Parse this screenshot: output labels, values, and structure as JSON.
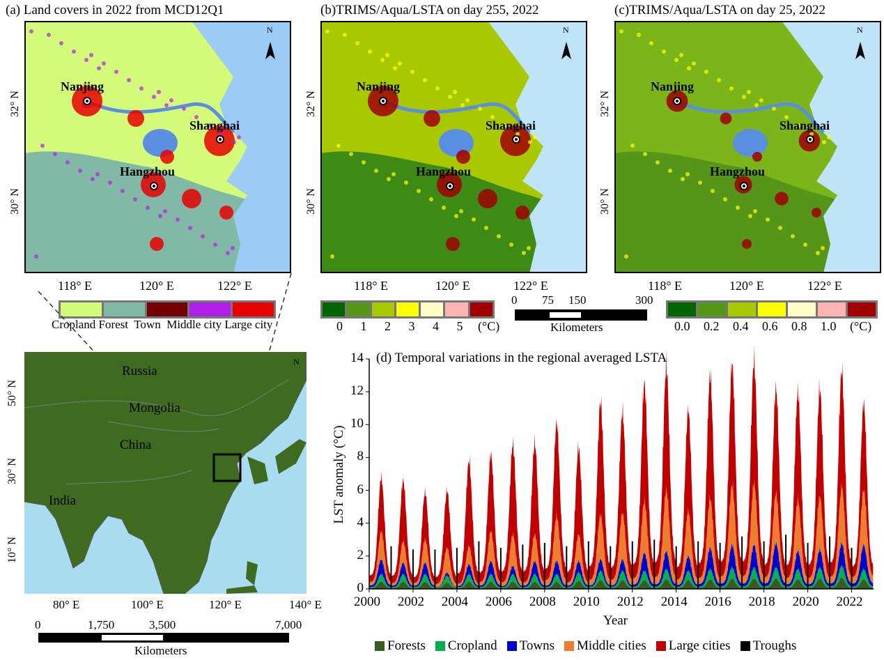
{
  "panels": {
    "a": {
      "title": "(a) Land covers in 2022 from MCD12Q1",
      "legend": [
        "Cropland",
        "Forest",
        "Town",
        "Middle city",
        "Large city"
      ],
      "legend_colors": [
        "#d4fa7a",
        "#82b9a6",
        "#720000",
        "#b020e8",
        "#e80000"
      ]
    },
    "b": {
      "title": "(b)TRIMS/Aqua/LSTA on day 255, 2022",
      "legend_labels": [
        "0",
        "1",
        "2",
        "3",
        "4",
        "5",
        "(°C)"
      ],
      "legend_colors": [
        "#006400",
        "#55961a",
        "#a8c800",
        "#ffff00",
        "#ffffc8",
        "#ffb4b4",
        "#a00000"
      ]
    },
    "c": {
      "title": "(c)TRIMS/Aqua/LSTA on day 25, 2022",
      "legend_labels": [
        "0.0",
        "0.2",
        "0.4",
        "0.6",
        "0.8",
        "1.0",
        "(°C)"
      ],
      "legend_colors": [
        "#006400",
        "#55961a",
        "#a8c800",
        "#ffff00",
        "#ffffc8",
        "#ffb4b4",
        "#a00000"
      ]
    }
  },
  "map_labels": {
    "lat": [
      "32° N",
      "30° N"
    ],
    "lon": [
      "118° E",
      "120° E",
      "122° E"
    ],
    "cities": [
      "Nanjing",
      "Shanghai",
      "Hangzhou"
    ],
    "north": "N"
  },
  "scalebar_regional": {
    "ticks": [
      "0",
      "75",
      "150",
      "300"
    ],
    "unit": "Kilometers"
  },
  "location_map": {
    "countries": [
      "Russia",
      "Mongolia",
      "China",
      "India"
    ],
    "lat": [
      "50° N",
      "30° N",
      "10° N"
    ],
    "lon": [
      "80° E",
      "100° E",
      "120° E",
      "140° E"
    ],
    "scalebar": {
      "ticks": [
        "0",
        "1,750",
        "3,500",
        "7,000"
      ],
      "unit": "Kilometers"
    },
    "north": "N"
  },
  "chart_data": {
    "type": "area",
    "title": "(d) Temporal variations in the regional averaged LSTA",
    "xlabel": "Year",
    "ylabel": "LST anomaly (°C)",
    "xlim": [
      2000,
      2023
    ],
    "ylim": [
      0,
      14
    ],
    "xticks": [
      "2000",
      "2002",
      "2004",
      "2006",
      "2008",
      "2010",
      "2012",
      "2014",
      "2016",
      "2018",
      "2020",
      "2022"
    ],
    "yticks": [
      "0",
      "2",
      "4",
      "6",
      "8",
      "10",
      "12",
      "14"
    ],
    "stacked": true,
    "grid": false,
    "legend_position": "bottom",
    "years": [
      2000,
      2001,
      2002,
      2003,
      2004,
      2005,
      2006,
      2007,
      2008,
      2009,
      2010,
      2011,
      2012,
      2013,
      2014,
      2015,
      2016,
      2017,
      2018,
      2019,
      2020,
      2021,
      2022
    ],
    "series": [
      {
        "name": "Forests",
        "color": "#3a5a24",
        "annual_peak": [
          0.45,
          0.45,
          0.45,
          0.4,
          0.45,
          0.45,
          0.45,
          0.45,
          0.45,
          0.5,
          0.55,
          0.55,
          0.55,
          0.6,
          0.55,
          0.6,
          0.65,
          0.65,
          0.65,
          0.6,
          0.65,
          0.7,
          0.6
        ]
      },
      {
        "name": "Cropland",
        "color": "#00b050",
        "annual_peak": [
          0.45,
          0.45,
          0.45,
          0.4,
          0.45,
          0.45,
          0.45,
          0.45,
          0.45,
          0.5,
          0.55,
          0.55,
          0.55,
          0.6,
          0.55,
          0.6,
          0.65,
          0.65,
          0.65,
          0.6,
          0.65,
          0.7,
          0.6
        ]
      },
      {
        "name": "Towns",
        "color": "#0000cc",
        "annual_peak": [
          0.9,
          0.7,
          0.7,
          0.2,
          0.6,
          0.8,
          0.5,
          0.8,
          0.8,
          0.7,
          0.7,
          0.7,
          1.1,
          1.1,
          0.9,
          1.3,
          1.4,
          1.4,
          1.5,
          1.1,
          1.1,
          1.4,
          1.5
        ]
      },
      {
        "name": "Middle cities",
        "color": "#ed7d31",
        "annual_peak": [
          1.7,
          1.3,
          1.4,
          1.5,
          1.1,
          1.8,
          1.9,
          1.6,
          2.7,
          1.6,
          2.7,
          2.8,
          3.1,
          3.7,
          2.7,
          3.0,
          3.6,
          3.7,
          3.0,
          3.1,
          3.2,
          3.4,
          3.3
        ]
      },
      {
        "name": "Large cities",
        "color": "#c00000",
        "annual_peak": [
          3.3,
          3.7,
          2.9,
          3.5,
          5.2,
          4.7,
          5.5,
          5.6,
          5.7,
          5.3,
          6.9,
          6.2,
          7.2,
          7.6,
          6.2,
          7.5,
          7.4,
          7.5,
          6.4,
          6.6,
          6.6,
          7.1,
          5.3
        ]
      }
    ],
    "troughs": {
      "name": "Troughs",
      "color": "#000000",
      "values": [
        2.6,
        2.4,
        2.4,
        2.5,
        2.9,
        2.5,
        2.7,
        2.8,
        2.6,
        2.9,
        2.6,
        2.9,
        3.0,
        2.6,
        2.9,
        2.8,
        3.2,
        2.9,
        3.3,
        2.8,
        3.2,
        2.5
      ]
    }
  }
}
